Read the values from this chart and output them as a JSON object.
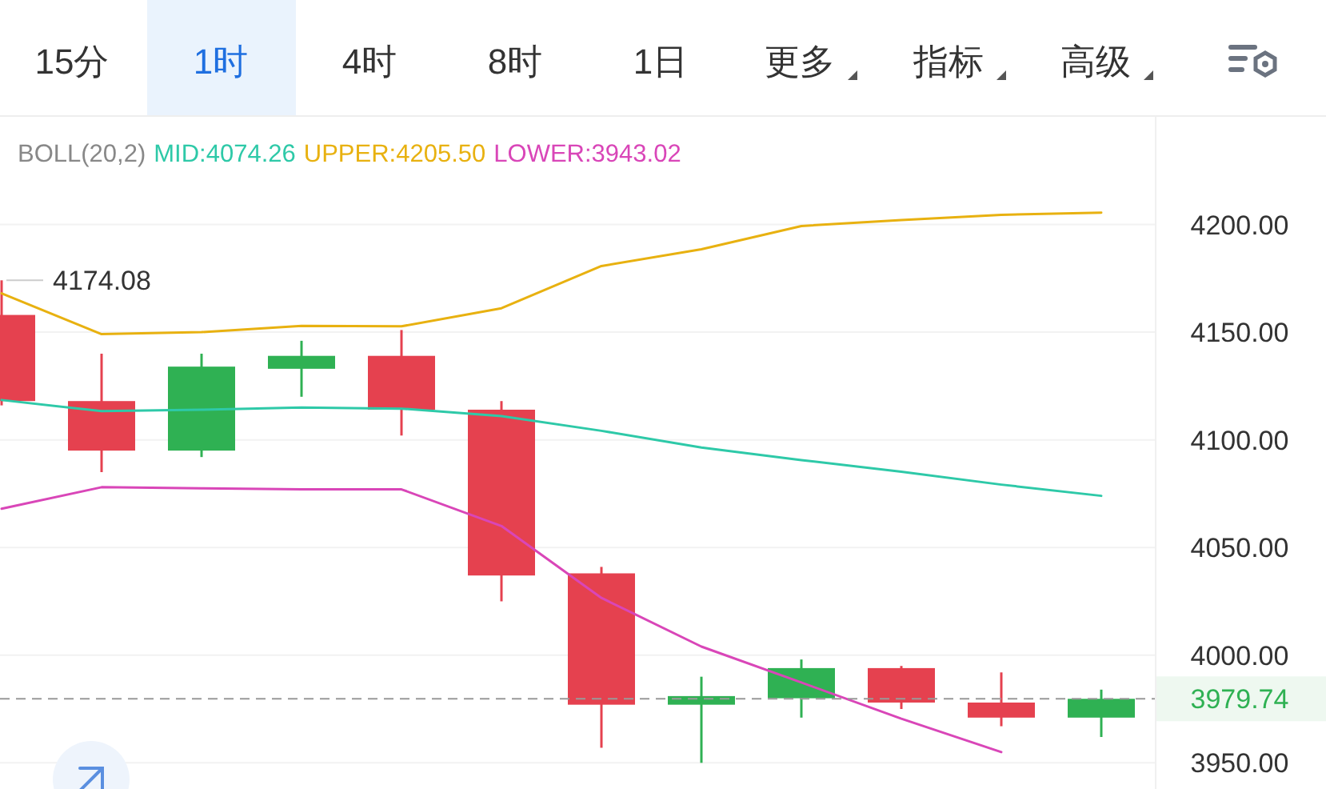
{
  "chart_data": {
    "type": "candlestick",
    "title": "BOLL(20,2)",
    "categories": [
      null,
      null,
      null,
      null,
      null,
      null,
      null,
      null,
      null,
      null,
      null,
      null
    ],
    "ohlc": [
      [
        4158,
        4174.08,
        4116,
        4118
      ],
      [
        4118,
        4140,
        4085,
        4095
      ],
      [
        4095,
        4140,
        4092,
        4134
      ],
      [
        4133,
        4146,
        4120,
        4139
      ],
      [
        4139,
        4151,
        4102,
        4114
      ],
      [
        4114,
        4118,
        4025,
        4037
      ],
      [
        4038,
        4041,
        3957,
        3977
      ],
      [
        3977,
        3990,
        3950,
        3981
      ],
      [
        3980,
        3998,
        3971,
        3994
      ],
      [
        3994,
        3995,
        3975,
        3978
      ],
      [
        3978,
        3992,
        3967,
        3971
      ],
      [
        3971,
        3984,
        3962,
        3979.74
      ]
    ],
    "colors": [
      "#e5414f",
      "#e5414f",
      "#2fb153",
      "#2fb153",
      "#e5414f",
      "#e5414f",
      "#e5414f",
      "#2fb153",
      "#2fb153",
      "#e5414f",
      "#e5414f",
      "#2fb153"
    ],
    "series": [
      {
        "name": "MID:4074.26",
        "type": "line",
        "color": "#2ec9a8",
        "values": [
          4118.5,
          4113.3,
          4114,
          4115,
          4114.5,
          4111,
          4104.2,
          4096.4,
          4090.6,
          4085.2,
          4079.2,
          4074
        ]
      },
      {
        "name": "UPPER:4205.50",
        "type": "line",
        "color": "#e8b110",
        "values": [
          4168,
          4149.1,
          4150,
          4152.9,
          4152.7,
          4161.1,
          4180.7,
          4188.5,
          4199.3,
          4202.1,
          4204.5,
          4205.5
        ]
      },
      {
        "name": "LOWER:3943.02",
        "type": "line",
        "color": "#d946b8",
        "values": [
          4068,
          4078,
          4077.5,
          4077,
          4077,
          4060,
          4026.6,
          4004,
          3987.3,
          3970.5,
          3955,
          null
        ]
      }
    ],
    "ylim": [
      3949,
      4250
    ],
    "yticks": [
      {
        "value": 3950,
        "label": "3950.00"
      },
      {
        "value": 4000,
        "label": "4000.00"
      },
      {
        "value": 4050,
        "label": "4050.00"
      },
      {
        "value": 4100,
        "label": "4100.00"
      },
      {
        "value": 4150,
        "label": "4150.00"
      },
      {
        "value": 4200,
        "label": "4200.00"
      }
    ],
    "grid": "y",
    "legend": "top",
    "ref_lines": [
      {
        "axis": "y",
        "value": 3979.74,
        "label": "3979.74",
        "line_style": "dashed"
      }
    ],
    "annotations": [
      "15分",
      "1时",
      "4时",
      "8时",
      "1日",
      "更多",
      "指标",
      "高级",
      "4174.08"
    ]
  }
}
